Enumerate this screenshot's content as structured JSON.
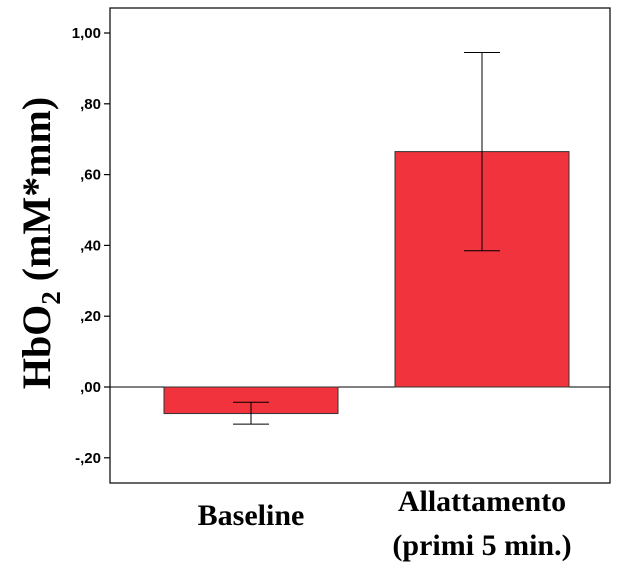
{
  "chart_data": {
    "type": "bar",
    "categories": [
      "Baseline",
      "Allattamento (primi 5 min.)"
    ],
    "category_lines": [
      [
        "Baseline"
      ],
      [
        "Allattamento",
        "(primi 5 min.)"
      ]
    ],
    "values": [
      -0.075,
      0.665
    ],
    "error_low": [
      -0.105,
      0.385
    ],
    "error_high": [
      -0.043,
      0.945
    ],
    "ylabel_main": "HbO",
    "ylabel_sub": "2",
    "ylabel_units": " (mM*mm)",
    "ylim": [
      -0.27,
      1.06
    ],
    "yticks": [
      1.0,
      0.8,
      0.6,
      0.4,
      0.2,
      0.0,
      -0.2
    ],
    "ytick_labels": [
      "1,00",
      ",80",
      ",60",
      ",40",
      ",20",
      ",00",
      "-,20"
    ],
    "bar_color": "#f0333c",
    "grid": false,
    "zero_line": true
  }
}
